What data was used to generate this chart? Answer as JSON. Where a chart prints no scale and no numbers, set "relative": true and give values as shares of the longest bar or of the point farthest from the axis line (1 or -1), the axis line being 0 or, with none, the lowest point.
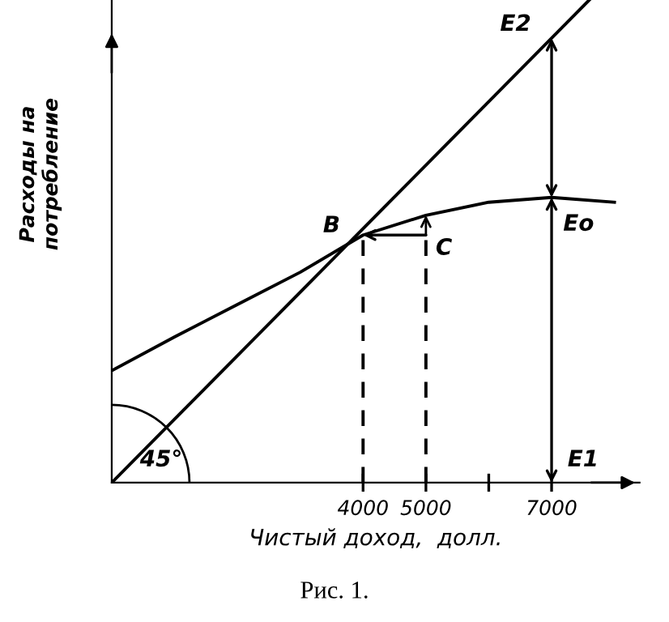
{
  "chart_data": {
    "type": "line",
    "relative": true,
    "xlabel": "Чистый доход,  долл.",
    "ylabel": "Расходы на\nпотребление",
    "xlim": [
      0,
      8400
    ],
    "xticks": [
      4000,
      5000,
      {
        "value": 6000,
        "label": null
      },
      7000
    ],
    "series": [
      {
        "color": "#000000",
        "x": [
          0,
          1000,
          2000,
          3000,
          4000,
          5000,
          6000,
          7000,
          8000
        ],
        "values": [
          0.232,
          0.302,
          0.369,
          0.436,
          0.513,
          0.554,
          0.581,
          0.591,
          0.581
        ]
      },
      {
        "color": "#000000",
        "x": [
          0,
          7600
        ],
        "values": [
          0,
          1
        ]
      },
      {
        "color": "#000000",
        "x": [
          4000,
          4000
        ],
        "values": [
          0,
          0.513
        ],
        "line_style": "dashed"
      },
      {
        "color": "#000000",
        "x": [
          5000,
          5000
        ],
        "values": [
          0,
          0.513
        ],
        "line_style": "dashed"
      }
    ],
    "annotations": [
      {
        "text": "B",
        "x": 4000,
        "y": 0.513
      },
      {
        "text": "C",
        "x": 5000,
        "y": 0.513
      },
      {
        "text": "Eo",
        "x": 7000,
        "y": 0.591
      },
      "E1",
      {
        "text": "E2",
        "x": 7000,
        "y": 0.921
      },
      {
        "text": "45°",
        "x": 0,
        "y": 0
      },
      "Рис. 1."
    ],
    "grid": false,
    "legend": false,
    "marker": "none",
    "line_style": "solid"
  }
}
